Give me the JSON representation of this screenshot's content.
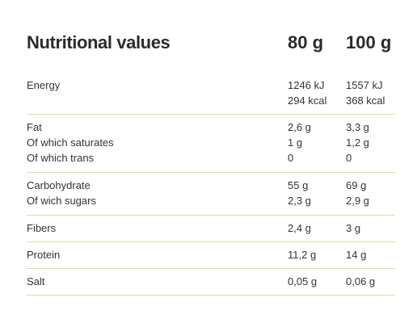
{
  "header": {
    "title": "Nutritional values",
    "col1": "80 g",
    "col2": "100 g"
  },
  "sections": [
    {
      "rows": [
        {
          "label": "Energy",
          "v1": "1246 kJ",
          "v2": "1557 kJ"
        },
        {
          "label": "",
          "v1": "294 kcal",
          "v2": "368 kcal"
        }
      ]
    },
    {
      "rows": [
        {
          "label": "Fat",
          "v1": "2,6 g",
          "v2": "3,3 g"
        },
        {
          "label": "Of which saturates",
          "v1": "1 g",
          "v2": "1,2 g"
        },
        {
          "label": "Of which trans",
          "v1": "0",
          "v2": "0"
        }
      ]
    },
    {
      "rows": [
        {
          "label": "Carbohydrate",
          "v1": "55 g",
          "v2": "69 g"
        },
        {
          "label": "Of wich sugars",
          "v1": "2,3 g",
          "v2": "2,9 g"
        }
      ]
    },
    {
      "rows": [
        {
          "label": "Fibers",
          "v1": "2,4 g",
          "v2": "3 g"
        }
      ]
    },
    {
      "rows": [
        {
          "label": "Protein",
          "v1": "11,2 g",
          "v2": "14 g"
        }
      ]
    },
    {
      "rows": [
        {
          "label": "Salt",
          "v1": "0,05 g",
          "v2": "0,06 g"
        }
      ]
    }
  ],
  "colors": {
    "text": "#2b2b2b",
    "divider": "#e6d3a8",
    "background": "#ffffff"
  }
}
